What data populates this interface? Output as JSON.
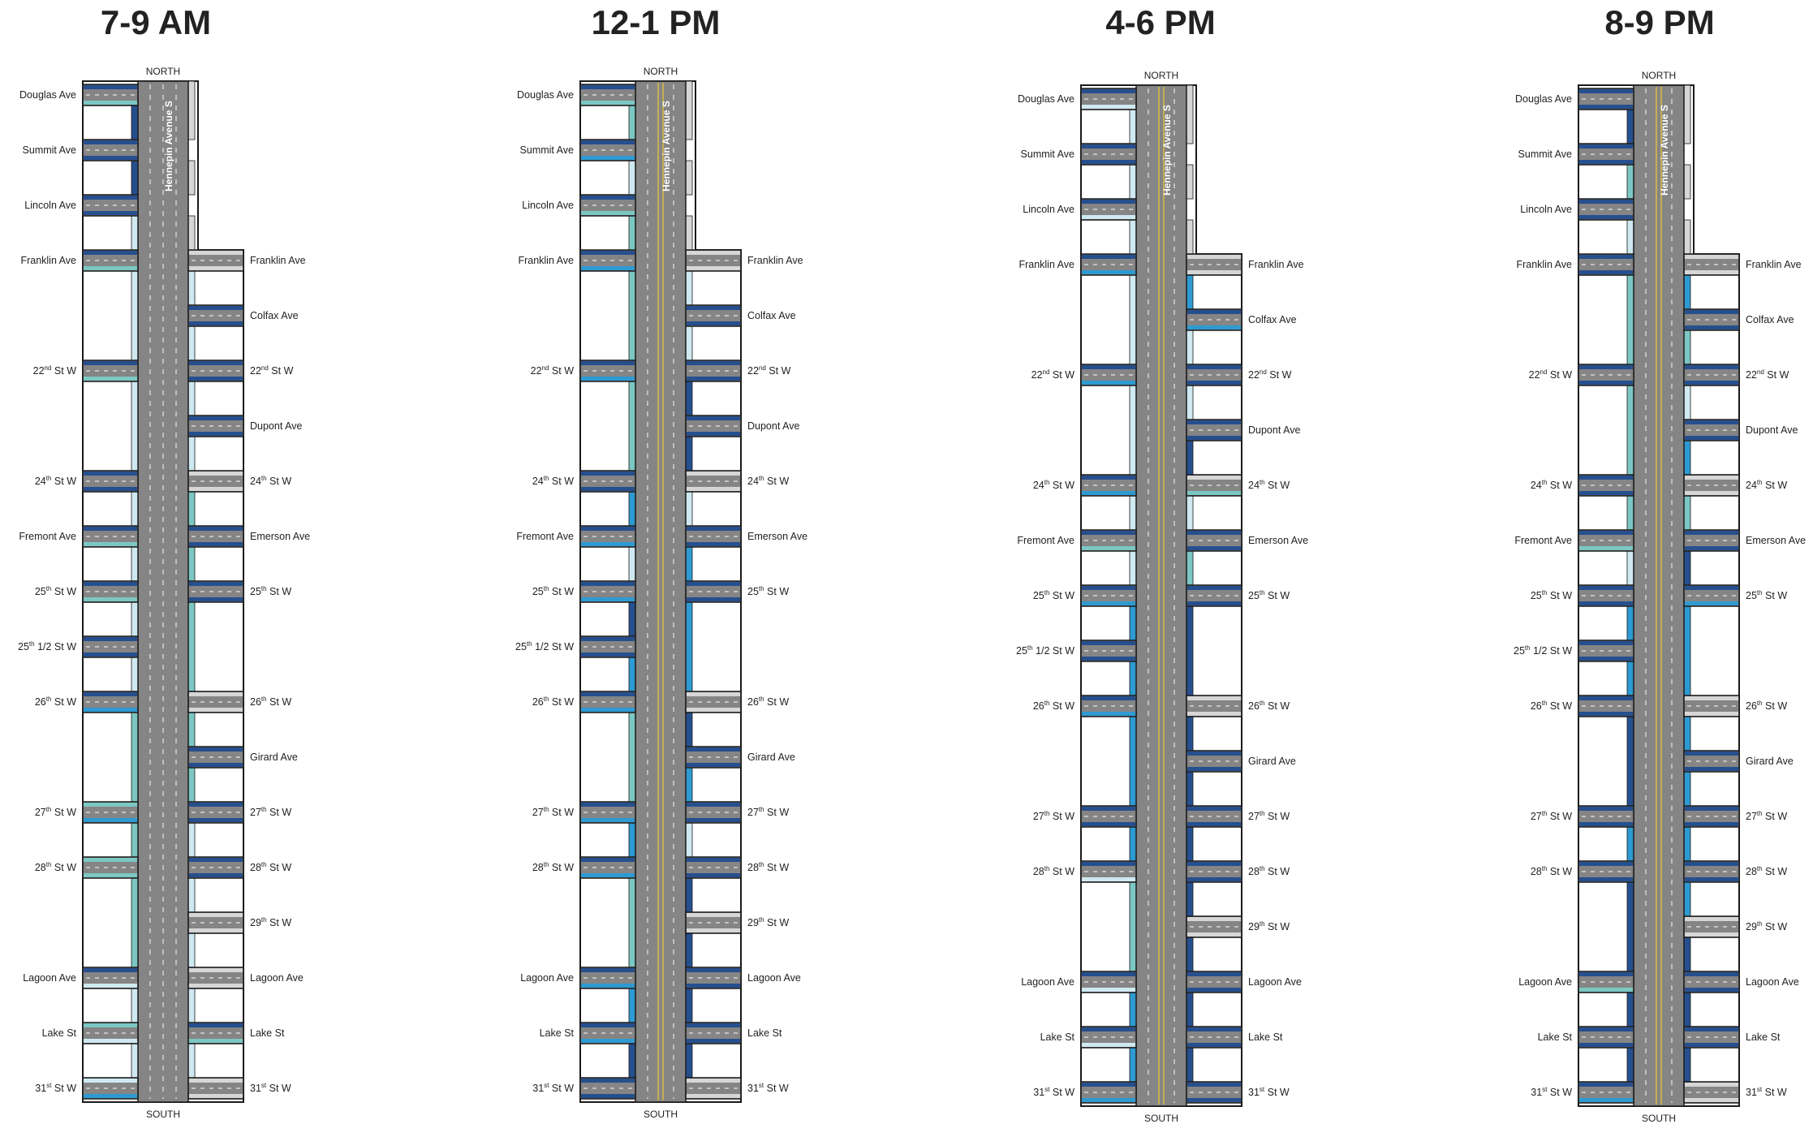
{
  "colors": {
    "road": "#858585",
    "road_outline": "#1a1a1a",
    "lane_dash": "#e6e6e6",
    "center_line": "#e8c43a",
    "frame": "#ffffff",
    "background": "#ffffff",
    "cond_dark": "#264f8e",
    "cond_medium": "#2e9ad2",
    "cond_teal": "#7cc7c3",
    "cond_light": "#cfe9f1",
    "cond_grey": "#d6d6d6"
  },
  "corridor": {
    "name": "Hennepin Avenue S",
    "north_label": "NORTH",
    "south_label": "SOUTH"
  },
  "streets": {
    "west": [
      {
        "name": "Douglas Ave",
        "sup": ""
      },
      {
        "name": "Summit Ave",
        "sup": ""
      },
      {
        "name": "Lincoln Ave",
        "sup": ""
      },
      {
        "name": "Franklin Ave",
        "sup": ""
      },
      {
        "name": "22",
        "sup": "nd",
        "suffix": " St W"
      },
      {
        "name": "24",
        "sup": "th",
        "suffix": " St W"
      },
      {
        "name": "Fremont Ave",
        "sup": ""
      },
      {
        "name": "25",
        "sup": "th",
        "suffix": " St W"
      },
      {
        "name": "25",
        "sup": "th",
        "suffix": " 1/2 St W"
      },
      {
        "name": "26",
        "sup": "th",
        "suffix": " St W"
      },
      {
        "name": "27",
        "sup": "th",
        "suffix": " St W"
      },
      {
        "name": "28",
        "sup": "th",
        "suffix": " St W"
      },
      {
        "name": "Lagoon Ave",
        "sup": ""
      },
      {
        "name": "Lake St",
        "sup": ""
      },
      {
        "name": "31",
        "sup": "st",
        "suffix": " St W"
      }
    ],
    "east": [
      {
        "name": "Franklin Ave",
        "sup": ""
      },
      {
        "name": "Colfax Ave",
        "sup": ""
      },
      {
        "name": "22",
        "sup": "nd",
        "suffix": " St W"
      },
      {
        "name": "Dupont Ave",
        "sup": ""
      },
      {
        "name": "24",
        "sup": "th",
        "suffix": " St W"
      },
      {
        "name": "Emerson Ave",
        "sup": ""
      },
      {
        "name": "25",
        "sup": "th",
        "suffix": " St W"
      },
      {
        "name": "26",
        "sup": "th",
        "suffix": " St W"
      },
      {
        "name": "Girard Ave",
        "sup": ""
      },
      {
        "name": "27",
        "sup": "th",
        "suffix": " St W"
      },
      {
        "name": "28",
        "sup": "th",
        "suffix": " St W"
      },
      {
        "name": "29",
        "sup": "th",
        "suffix": " St W"
      },
      {
        "name": "Lagoon Ave",
        "sup": ""
      },
      {
        "name": "Lake St",
        "sup": ""
      },
      {
        "name": "31",
        "sup": "st",
        "suffix": " St W"
      }
    ]
  },
  "panels": [
    {
      "title": "7-9 AM",
      "west_street_colors": [
        [
          "cond_dark",
          "cond_teal"
        ],
        [
          "cond_dark",
          "cond_dark"
        ],
        [
          "cond_dark",
          "cond_dark"
        ],
        [
          "cond_dark",
          "cond_teal"
        ],
        [
          "cond_dark",
          "cond_teal"
        ],
        [
          "cond_dark",
          "cond_dark"
        ],
        [
          "cond_dark",
          "cond_teal"
        ],
        [
          "cond_dark",
          "cond_teal"
        ],
        [
          "cond_dark",
          "cond_dark"
        ],
        [
          "cond_dark",
          "cond_medium"
        ],
        [
          "cond_teal",
          "cond_medium"
        ],
        [
          "cond_teal",
          "cond_teal"
        ],
        [
          "cond_dark",
          "cond_light"
        ],
        [
          "cond_teal",
          "cond_light"
        ],
        [
          "cond_light",
          "cond_medium"
        ]
      ],
      "east_street_colors": [
        [
          "cond_grey",
          "cond_grey"
        ],
        [
          "cond_dark",
          "cond_dark"
        ],
        [
          "cond_dark",
          "cond_dark"
        ],
        [
          "cond_dark",
          "cond_dark"
        ],
        [
          "cond_grey",
          "cond_grey"
        ],
        [
          "cond_dark",
          "cond_dark"
        ],
        [
          "cond_dark",
          "cond_dark"
        ],
        [
          "cond_grey",
          "cond_grey"
        ],
        [
          "cond_dark",
          "cond_dark"
        ],
        [
          "cond_dark",
          "cond_dark"
        ],
        [
          "cond_dark",
          "cond_dark"
        ],
        [
          "cond_grey",
          "cond_grey"
        ],
        [
          "cond_grey",
          "cond_grey"
        ],
        [
          "cond_dark",
          "cond_teal"
        ],
        [
          "cond_grey",
          "cond_grey"
        ]
      ],
      "corridor_west_side": [
        "cond_dark",
        "cond_dark",
        "cond_light",
        "cond_light",
        "cond_light",
        "cond_light",
        "cond_light",
        "cond_light",
        "cond_light",
        "cond_teal",
        "cond_teal",
        "cond_teal",
        "cond_light",
        "cond_light"
      ],
      "corridor_east_side": [
        "cond_grey",
        "cond_grey",
        "cond_grey",
        "cond_light",
        "cond_light",
        "cond_light",
        "cond_light",
        "cond_teal",
        "cond_teal",
        "cond_teal",
        "cond_teal",
        "cond_teal",
        "cond_light",
        "cond_light",
        "cond_light",
        "cond_light",
        "cond_light"
      ],
      "center_line": false
    },
    {
      "title": "12-1 PM",
      "west_street_colors": [
        [
          "cond_dark",
          "cond_teal"
        ],
        [
          "cond_dark",
          "cond_medium"
        ],
        [
          "cond_dark",
          "cond_teal"
        ],
        [
          "cond_dark",
          "cond_medium"
        ],
        [
          "cond_dark",
          "cond_medium"
        ],
        [
          "cond_dark",
          "cond_dark"
        ],
        [
          "cond_dark",
          "cond_medium"
        ],
        [
          "cond_dark",
          "cond_medium"
        ],
        [
          "cond_dark",
          "cond_dark"
        ],
        [
          "cond_dark",
          "cond_medium"
        ],
        [
          "cond_dark",
          "cond_medium"
        ],
        [
          "cond_dark",
          "cond_medium"
        ],
        [
          "cond_dark",
          "cond_medium"
        ],
        [
          "cond_dark",
          "cond_medium"
        ],
        [
          "cond_dark",
          "cond_dark"
        ]
      ],
      "east_street_colors": [
        [
          "cond_grey",
          "cond_grey"
        ],
        [
          "cond_dark",
          "cond_dark"
        ],
        [
          "cond_dark",
          "cond_dark"
        ],
        [
          "cond_dark",
          "cond_dark"
        ],
        [
          "cond_grey",
          "cond_grey"
        ],
        [
          "cond_dark",
          "cond_dark"
        ],
        [
          "cond_dark",
          "cond_dark"
        ],
        [
          "cond_grey",
          "cond_grey"
        ],
        [
          "cond_dark",
          "cond_dark"
        ],
        [
          "cond_dark",
          "cond_dark"
        ],
        [
          "cond_dark",
          "cond_dark"
        ],
        [
          "cond_grey",
          "cond_grey"
        ],
        [
          "cond_dark",
          "cond_dark"
        ],
        [
          "cond_dark",
          "cond_dark"
        ],
        [
          "cond_grey",
          "cond_grey"
        ]
      ],
      "corridor_west_side": [
        "cond_teal",
        "cond_light",
        "cond_teal",
        "cond_teal",
        "cond_teal",
        "cond_medium",
        "cond_light",
        "cond_dark",
        "cond_medium",
        "cond_teal",
        "cond_medium",
        "cond_teal",
        "cond_medium",
        "cond_dark"
      ],
      "corridor_east_side": [
        "cond_grey",
        "cond_grey",
        "cond_grey",
        "cond_light",
        "cond_light",
        "cond_dark",
        "cond_dark",
        "cond_light",
        "cond_medium",
        "cond_medium",
        "cond_dark",
        "cond_medium",
        "cond_light",
        "cond_dark",
        "cond_dark",
        "cond_dark",
        "cond_dark"
      ],
      "center_line": true
    },
    {
      "title": "4-6 PM",
      "west_street_colors": [
        [
          "cond_dark",
          "cond_light"
        ],
        [
          "cond_dark",
          "cond_dark"
        ],
        [
          "cond_dark",
          "cond_light"
        ],
        [
          "cond_dark",
          "cond_medium"
        ],
        [
          "cond_dark",
          "cond_medium"
        ],
        [
          "cond_dark",
          "cond_medium"
        ],
        [
          "cond_dark",
          "cond_teal"
        ],
        [
          "cond_dark",
          "cond_medium"
        ],
        [
          "cond_dark",
          "cond_dark"
        ],
        [
          "cond_dark",
          "cond_medium"
        ],
        [
          "cond_dark",
          "cond_dark"
        ],
        [
          "cond_dark",
          "cond_light"
        ],
        [
          "cond_dark",
          "cond_light"
        ],
        [
          "cond_dark",
          "cond_light"
        ],
        [
          "cond_dark",
          "cond_medium"
        ]
      ],
      "east_street_colors": [
        [
          "cond_grey",
          "cond_grey"
        ],
        [
          "cond_dark",
          "cond_medium"
        ],
        [
          "cond_dark",
          "cond_dark"
        ],
        [
          "cond_dark",
          "cond_dark"
        ],
        [
          "cond_grey",
          "cond_teal"
        ],
        [
          "cond_dark",
          "cond_dark"
        ],
        [
          "cond_dark",
          "cond_dark"
        ],
        [
          "cond_grey",
          "cond_grey"
        ],
        [
          "cond_dark",
          "cond_dark"
        ],
        [
          "cond_dark",
          "cond_dark"
        ],
        [
          "cond_dark",
          "cond_dark"
        ],
        [
          "cond_grey",
          "cond_grey"
        ],
        [
          "cond_dark",
          "cond_dark"
        ],
        [
          "cond_dark",
          "cond_dark"
        ],
        [
          "cond_dark",
          "cond_dark"
        ]
      ],
      "corridor_west_side": [
        "cond_light",
        "cond_light",
        "cond_light",
        "cond_light",
        "cond_light",
        "cond_light",
        "cond_light",
        "cond_medium",
        "cond_medium",
        "cond_medium",
        "cond_medium",
        "cond_teal",
        "cond_medium",
        "cond_medium"
      ],
      "corridor_east_side": [
        "cond_grey",
        "cond_grey",
        "cond_grey",
        "cond_medium",
        "cond_light",
        "cond_light",
        "cond_dark",
        "cond_light",
        "cond_teal",
        "cond_dark",
        "cond_dark",
        "cond_dark",
        "cond_dark",
        "cond_dark",
        "cond_dark",
        "cond_dark",
        "cond_dark"
      ],
      "center_line": true
    },
    {
      "title": "8-9 PM",
      "west_street_colors": [
        [
          "cond_dark",
          "cond_dark"
        ],
        [
          "cond_dark",
          "cond_dark"
        ],
        [
          "cond_dark",
          "cond_dark"
        ],
        [
          "cond_dark",
          "cond_dark"
        ],
        [
          "cond_dark",
          "cond_dark"
        ],
        [
          "cond_dark",
          "cond_dark"
        ],
        [
          "cond_dark",
          "cond_teal"
        ],
        [
          "cond_dark",
          "cond_dark"
        ],
        [
          "cond_dark",
          "cond_dark"
        ],
        [
          "cond_dark",
          "cond_dark"
        ],
        [
          "cond_dark",
          "cond_dark"
        ],
        [
          "cond_dark",
          "cond_dark"
        ],
        [
          "cond_dark",
          "cond_teal"
        ],
        [
          "cond_dark",
          "cond_dark"
        ],
        [
          "cond_dark",
          "cond_medium"
        ]
      ],
      "east_street_colors": [
        [
          "cond_grey",
          "cond_grey"
        ],
        [
          "cond_dark",
          "cond_dark"
        ],
        [
          "cond_dark",
          "cond_dark"
        ],
        [
          "cond_dark",
          "cond_dark"
        ],
        [
          "cond_grey",
          "cond_grey"
        ],
        [
          "cond_dark",
          "cond_dark"
        ],
        [
          "cond_dark",
          "cond_medium"
        ],
        [
          "cond_grey",
          "cond_grey"
        ],
        [
          "cond_dark",
          "cond_dark"
        ],
        [
          "cond_dark",
          "cond_dark"
        ],
        [
          "cond_dark",
          "cond_dark"
        ],
        [
          "cond_grey",
          "cond_grey"
        ],
        [
          "cond_dark",
          "cond_dark"
        ],
        [
          "cond_dark",
          "cond_dark"
        ],
        [
          "cond_grey",
          "cond_grey"
        ]
      ],
      "corridor_west_side": [
        "cond_dark",
        "cond_teal",
        "cond_light",
        "cond_teal",
        "cond_teal",
        "cond_teal",
        "cond_light",
        "cond_medium",
        "cond_medium",
        "cond_dark",
        "cond_medium",
        "cond_dark",
        "cond_dark",
        "cond_dark"
      ],
      "corridor_east_side": [
        "cond_grey",
        "cond_grey",
        "cond_grey",
        "cond_medium",
        "cond_teal",
        "cond_light",
        "cond_medium",
        "cond_teal",
        "cond_dark",
        "cond_medium",
        "cond_medium",
        "cond_medium",
        "cond_medium",
        "cond_medium",
        "cond_dark",
        "cond_dark",
        "cond_dark"
      ],
      "center_line": true
    }
  ]
}
